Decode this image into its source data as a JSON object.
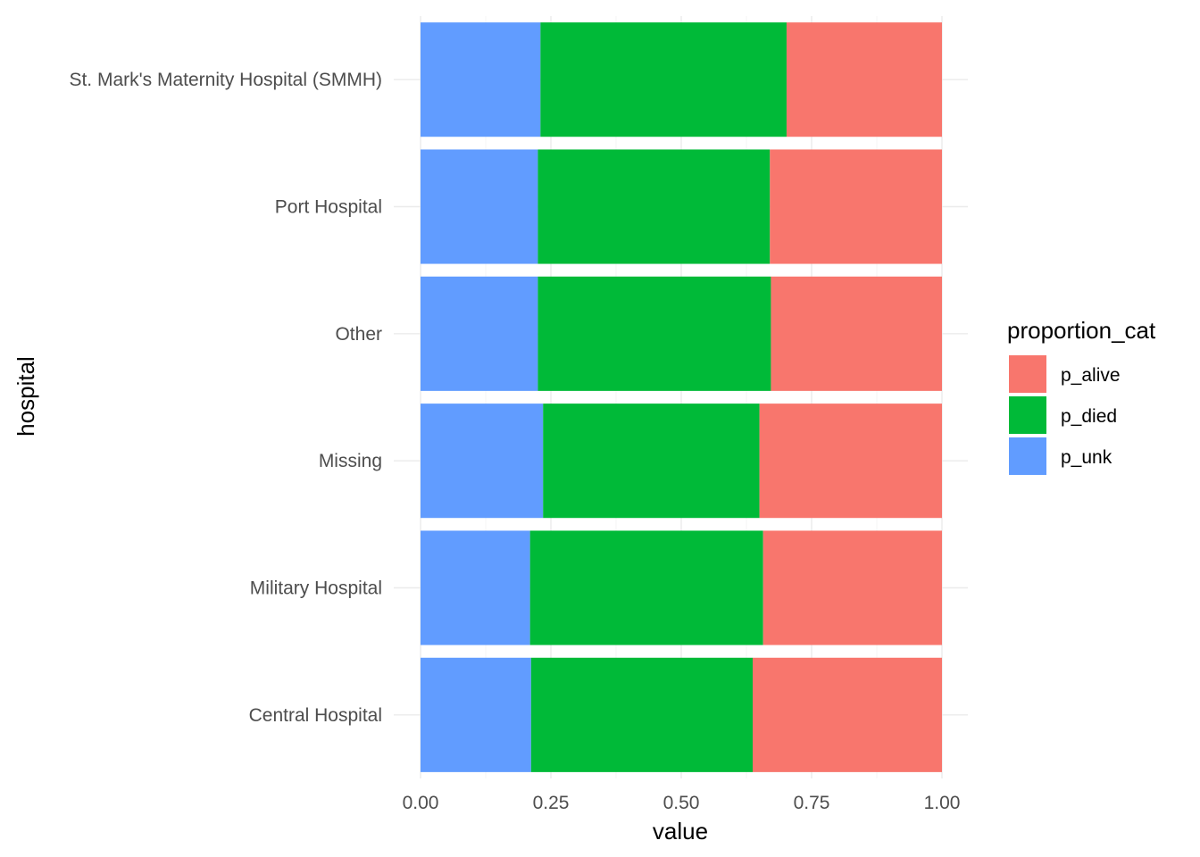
{
  "chart_data": {
    "type": "bar",
    "orientation": "horizontal",
    "stacked": true,
    "categories": [
      "St. Mark's Maternity Hospital (SMMH)",
      "Port Hospital",
      "Other",
      "Missing",
      "Military Hospital",
      "Central Hospital"
    ],
    "series": [
      {
        "name": "p_unk",
        "color": "#619CFF",
        "values": [
          0.23,
          0.225,
          0.225,
          0.235,
          0.21,
          0.212
        ]
      },
      {
        "name": "p_died",
        "color": "#00BA38",
        "values": [
          0.472,
          0.445,
          0.447,
          0.415,
          0.447,
          0.425
        ]
      },
      {
        "name": "p_alive",
        "color": "#F8766D",
        "values": [
          0.298,
          0.33,
          0.328,
          0.35,
          0.343,
          0.363
        ]
      }
    ],
    "xlabel": "value",
    "ylabel": "hospital",
    "xlim": [
      0,
      1
    ],
    "xticks": [
      "0.00",
      "0.25",
      "0.50",
      "0.75",
      "1.00"
    ],
    "grid": true,
    "legend": {
      "title": "proportion_cat",
      "placement": "right",
      "entries": [
        "p_alive",
        "p_died",
        "p_unk"
      ]
    }
  }
}
